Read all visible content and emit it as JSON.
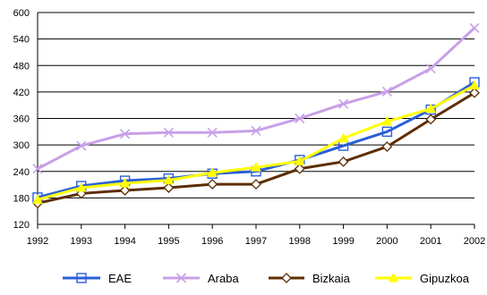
{
  "chart_data": {
    "type": "line",
    "title": "",
    "xlabel": "",
    "ylabel": "",
    "x": [
      "1992",
      "1993",
      "1994",
      "1995",
      "1996",
      "1997",
      "1998",
      "1999",
      "2000",
      "2001",
      "2002"
    ],
    "ylim": [
      120,
      600
    ],
    "yticks": [
      120,
      180,
      240,
      300,
      360,
      420,
      480,
      540,
      600
    ],
    "grid": true,
    "legend_position": "bottom",
    "series": [
      {
        "name": "EAE",
        "color": "#2b5fd9",
        "marker": "square",
        "values": [
          181,
          207,
          219,
          224,
          235,
          240,
          266,
          298,
          330,
          380,
          442
        ]
      },
      {
        "name": "Araba",
        "color": "#c8a0e8",
        "marker": "cross",
        "values": [
          246,
          298,
          325,
          328,
          328,
          332,
          360,
          393,
          421,
          473,
          565
        ]
      },
      {
        "name": "Bizkaia",
        "color": "#5c2e00",
        "marker": "diamond",
        "values": [
          168,
          190,
          197,
          203,
          211,
          211,
          246,
          262,
          296,
          358,
          418
        ]
      },
      {
        "name": "Gipuzkoa",
        "color": "#ffff00",
        "marker": "triangle",
        "values": [
          176,
          203,
          213,
          220,
          237,
          249,
          263,
          315,
          353,
          382,
          435
        ]
      }
    ]
  }
}
